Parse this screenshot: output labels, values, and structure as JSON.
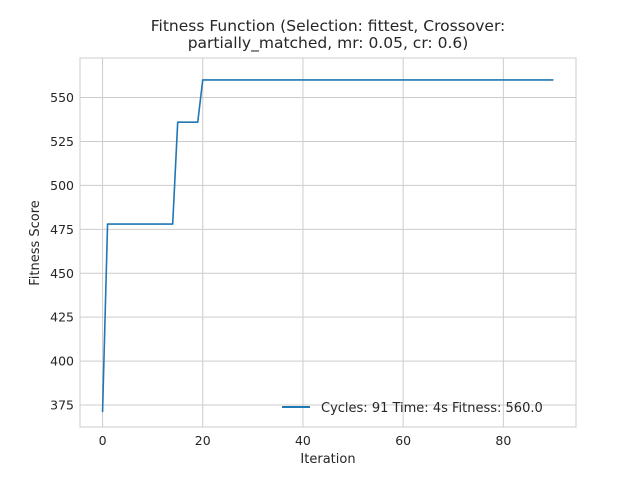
{
  "chart_data": {
    "type": "line",
    "title_lines": [
      "Fitness Function (Selection: fittest, Crossover:",
      "partially_matched, mr: 0.05, cr: 0.6)"
    ],
    "xlabel": "Iteration",
    "ylabel": "Fitness Score",
    "xlim": [
      -4.5,
      94.5
    ],
    "ylim": [
      362.5,
      572.5
    ],
    "xticks": [
      0,
      20,
      40,
      60,
      80
    ],
    "yticks": [
      375,
      400,
      425,
      450,
      475,
      500,
      525,
      550
    ],
    "grid": true,
    "legend_position": "lower-right",
    "series": [
      {
        "name": "Cycles: 91 Time: 4s Fitness: 560.0",
        "color": "#1f77b4",
        "x": [
          0,
          1,
          2,
          3,
          4,
          5,
          6,
          7,
          8,
          9,
          10,
          11,
          12,
          13,
          14,
          15,
          16,
          17,
          18,
          19,
          20,
          21,
          90
        ],
        "y": [
          371,
          478,
          478,
          478,
          478,
          478,
          478,
          478,
          478,
          478,
          478,
          478,
          478,
          478,
          478,
          536,
          536,
          536,
          536,
          536,
          560,
          560,
          560
        ]
      }
    ]
  }
}
